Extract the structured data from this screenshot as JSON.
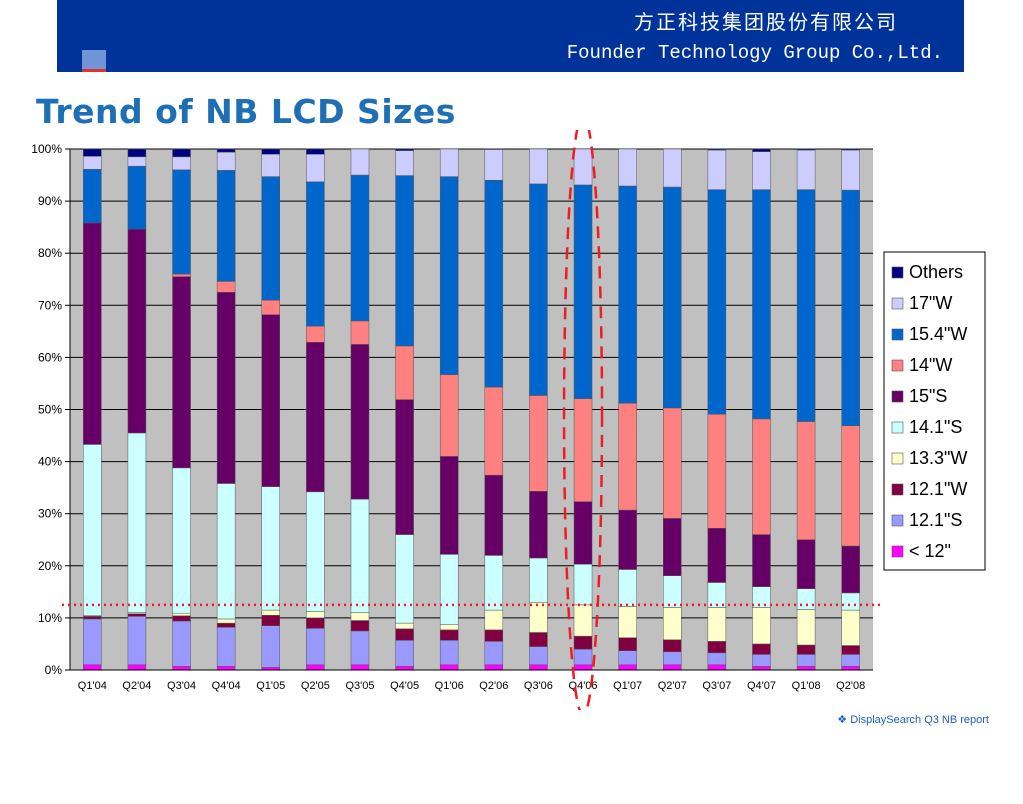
{
  "header": {
    "company_cn": "方正科技集团股份有限公司",
    "company_en": "Founder Technology Group Co.,Ltd.",
    "banner_color": "#003399"
  },
  "slide_title": "Trend of NB LCD Sizes",
  "source_note": "❖ DisplaySearch Q3 NB report",
  "chart_data": {
    "type": "bar",
    "stacked": true,
    "percent": true,
    "title": "Trend of NB LCD Sizes",
    "xlabel": "",
    "ylabel": "",
    "ylim": [
      0,
      100
    ],
    "yticks": [
      "0%",
      "10%",
      "20%",
      "30%",
      "40%",
      "50%",
      "60%",
      "70%",
      "80%",
      "90%",
      "100%"
    ],
    "grid": "horizontal",
    "plot_background": "#c0c0c0",
    "legend_position": "right",
    "categories": [
      "Q1'04",
      "Q2'04",
      "Q3'04",
      "Q4'04",
      "Q1'05",
      "Q2'05",
      "Q3'05",
      "Q4'05",
      "Q1'06",
      "Q2'06",
      "Q3'06",
      "Q4'06",
      "Q1'07",
      "Q2'07",
      "Q3'07",
      "Q4'07",
      "Q1'08",
      "Q2'08"
    ],
    "series": [
      {
        "name": "< 12\"",
        "color": "#ff00ff",
        "values": [
          1.0,
          1.0,
          0.7,
          0.7,
          0.5,
          1.0,
          1.0,
          0.7,
          1.0,
          1.0,
          1.0,
          1.0,
          1.0,
          1.0,
          1.0,
          0.7,
          0.7,
          0.7
        ]
      },
      {
        "name": "12.1\"S",
        "color": "#9999ff",
        "values": [
          8.8,
          9.3,
          8.7,
          7.5,
          8.0,
          7.0,
          6.5,
          5.0,
          4.7,
          4.5,
          3.5,
          3.0,
          2.7,
          2.5,
          2.3,
          2.3,
          2.3,
          2.3
        ]
      },
      {
        "name": "12.1\"W",
        "color": "#800040",
        "values": [
          0.5,
          0.5,
          1.0,
          0.8,
          2.0,
          2.0,
          2.0,
          2.2,
          2.0,
          2.2,
          2.7,
          2.5,
          2.5,
          2.3,
          2.2,
          2.0,
          1.8,
          1.7
        ]
      },
      {
        "name": "13.3\"W",
        "color": "#ffffcc",
        "values": [
          0.2,
          0.2,
          0.5,
          0.8,
          1.0,
          1.2,
          1.5,
          1.1,
          1.0,
          3.8,
          5.8,
          6.0,
          6.0,
          6.2,
          6.5,
          7.0,
          6.8,
          6.8
        ]
      },
      {
        "name": "14.1\"S",
        "color": "#ccffff",
        "values": [
          32.8,
          34.5,
          27.9,
          26.0,
          23.7,
          23.0,
          21.8,
          17.0,
          13.5,
          10.5,
          8.5,
          7.8,
          7.1,
          6.1,
          4.8,
          4.0,
          4.0,
          3.3
        ]
      },
      {
        "name": "15\"S",
        "color": "#660066",
        "values": [
          42.5,
          39.1,
          36.7,
          36.7,
          33.0,
          28.7,
          29.7,
          25.9,
          18.8,
          15.4,
          12.8,
          12.0,
          11.4,
          11.0,
          10.4,
          10.0,
          9.4,
          9.0
        ]
      },
      {
        "name": "14\"W",
        "color": "#ff8080",
        "values": [
          0.0,
          0.0,
          0.5,
          2.1,
          2.8,
          3.1,
          4.5,
          10.3,
          15.7,
          16.9,
          18.4,
          19.8,
          20.5,
          21.2,
          21.9,
          22.2,
          22.7,
          23.1
        ]
      },
      {
        "name": "15.4\"W",
        "color": "#0066cc",
        "values": [
          10.3,
          12.1,
          20.0,
          21.3,
          23.7,
          27.7,
          28.0,
          32.7,
          38.0,
          39.7,
          40.6,
          41.0,
          41.7,
          42.4,
          43.1,
          44.0,
          44.5,
          45.2
        ]
      },
      {
        "name": "17\"W",
        "color": "#ccccff",
        "values": [
          2.5,
          1.8,
          2.5,
          3.5,
          4.3,
          5.3,
          5.0,
          4.8,
          5.3,
          5.9,
          6.7,
          6.9,
          7.1,
          7.3,
          7.6,
          7.3,
          7.6,
          7.7
        ]
      },
      {
        "name": "Others",
        "color": "#000080",
        "values": [
          1.4,
          1.5,
          1.5,
          0.6,
          1.0,
          1.0,
          0.0,
          0.3,
          0.0,
          0.1,
          0.0,
          0.0,
          0.0,
          0.0,
          0.2,
          0.5,
          0.2,
          0.2
        ]
      }
    ],
    "annotations": [
      {
        "kind": "dashed-ellipse",
        "category": "Q4'06",
        "color": "#ee1c25"
      },
      {
        "kind": "dotted-hline",
        "y": 12.5,
        "color": "#ee1c25"
      }
    ]
  }
}
